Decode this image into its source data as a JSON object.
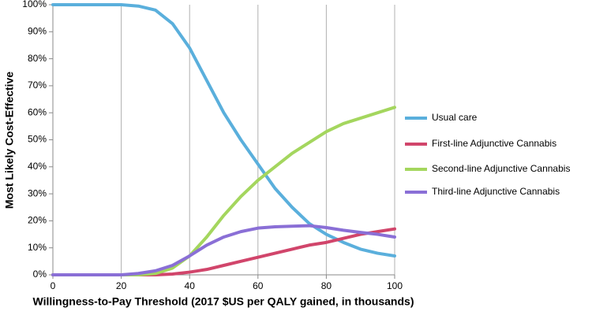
{
  "chart_data": {
    "type": "line",
    "x_label": "Willingness-to-Pay Threshold (2017 $US per QALY gained, in thousands)",
    "y_label": "Most Likely Cost-Effective",
    "x": [
      0,
      5,
      10,
      15,
      20,
      25,
      30,
      35,
      40,
      45,
      50,
      55,
      60,
      65,
      70,
      75,
      80,
      85,
      90,
      95,
      100
    ],
    "series": [
      {
        "name": "Usual care",
        "color": "#5aafdc",
        "values": [
          100,
          100,
          100,
          100,
          100,
          99.5,
          98,
          93,
          84,
          72,
          60,
          50,
          41,
          32,
          25,
          19,
          15,
          12,
          9.5,
          8,
          7
        ]
      },
      {
        "name": "First-line Adjunctive Cannabis",
        "color": "#d1456b",
        "values": [
          0,
          0,
          0,
          0,
          0,
          0,
          0,
          0.3,
          1,
          2,
          3.5,
          5,
          6.5,
          8,
          9.5,
          11,
          12,
          13.5,
          15,
          16,
          17
        ]
      },
      {
        "name": "Second-line Adjunctive Cannabis",
        "color": "#a4d65e",
        "values": [
          0,
          0,
          0,
          0,
          0,
          0,
          0.5,
          2.5,
          7,
          14,
          22,
          29,
          35,
          40,
          45,
          49,
          53,
          56,
          58,
          60,
          62
        ]
      },
      {
        "name": "Third-line Adjunctive Cannabis",
        "color": "#8a6fd6",
        "values": [
          0,
          0,
          0,
          0,
          0,
          0.5,
          1.5,
          3.5,
          7,
          11,
          14,
          16,
          17.3,
          17.8,
          18,
          18.2,
          17.5,
          16.5,
          15.7,
          15,
          14
        ]
      }
    ],
    "xlim": [
      0,
      100
    ],
    "xticks": [
      0,
      20,
      40,
      60,
      80,
      100
    ],
    "ylim": [
      0,
      100
    ],
    "yticks": [
      {
        "value": 0,
        "label": "0%"
      },
      {
        "value": 10,
        "label": "10%"
      },
      {
        "value": 20,
        "label": "20%"
      },
      {
        "value": 30,
        "label": "30%"
      },
      {
        "value": 40,
        "label": "40%"
      },
      {
        "value": 50,
        "label": "50%"
      },
      {
        "value": 60,
        "label": "60%"
      },
      {
        "value": 70,
        "label": "70%"
      },
      {
        "value": 80,
        "label": "80%"
      },
      {
        "value": 90,
        "label": "90%"
      },
      {
        "value": 100,
        "label": "100%"
      }
    ],
    "grid": "x",
    "legend": "right"
  }
}
